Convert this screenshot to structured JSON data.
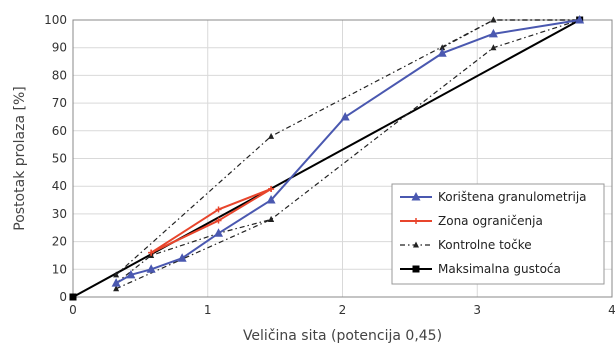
{
  "chart_data": {
    "type": "line",
    "title": "",
    "xlabel": "Veličina sita (potencija 0,45)",
    "ylabel": "Postotak prolaza [%]",
    "xlim": [
      0,
      4
    ],
    "ylim": [
      0,
      100
    ],
    "xticks": [
      "0",
      "1",
      "2",
      "3",
      "4"
    ],
    "yticks": [
      "0",
      "10",
      "20",
      "30",
      "40",
      "50",
      "60",
      "70",
      "80",
      "90",
      "100"
    ],
    "grid": true,
    "legend_position": "bottom-right",
    "series": [
      {
        "name": "Korištena granulometrija",
        "color": "#4a58b0",
        "style": "solid",
        "marker": "triangle",
        "x": [
          0.32,
          0.43,
          0.58,
          0.81,
          1.08,
          1.47,
          2.02,
          2.74,
          3.12,
          3.76
        ],
        "y": [
          5,
          8,
          10,
          14,
          23,
          35,
          65,
          88,
          95,
          100
        ]
      },
      {
        "name": "Zona ograničenja",
        "color": "#e8452c",
        "style": "solid",
        "marker": "plus",
        "polylines": [
          {
            "x": [
              0.58,
              1.08,
              1.47
            ],
            "y": [
              16,
              31.6,
              39
            ]
          },
          {
            "x": [
              0.58,
              1.08,
              1.47
            ],
            "y": [
              16,
              27.6,
              39
            ]
          }
        ]
      },
      {
        "name": "Kontrolne točke",
        "color": "#222222",
        "style": "dash-dot",
        "marker": "triangle-small",
        "polylines": [
          {
            "x": [
              0.32,
              1.47,
              3.12,
              3.76
            ],
            "y": [
              8,
              58,
              100,
              100
            ]
          },
          {
            "x": [
              0.32,
              1.47,
              3.12,
              3.76
            ],
            "y": [
              3,
              28,
              90,
              100
            ]
          },
          {
            "x": [
              0.32,
              0.58,
              1.08,
              1.47
            ],
            "y": [
              5,
              15,
              23,
              28
            ]
          },
          {
            "x": [
              2.74,
              3.12,
              3.76
            ],
            "y": [
              90,
              100,
              100
            ]
          }
        ]
      },
      {
        "name": "Maksimalna gustoća",
        "color": "#000000",
        "style": "solid",
        "marker": "square",
        "x": [
          0,
          3.76
        ],
        "y": [
          0,
          100
        ]
      }
    ]
  }
}
